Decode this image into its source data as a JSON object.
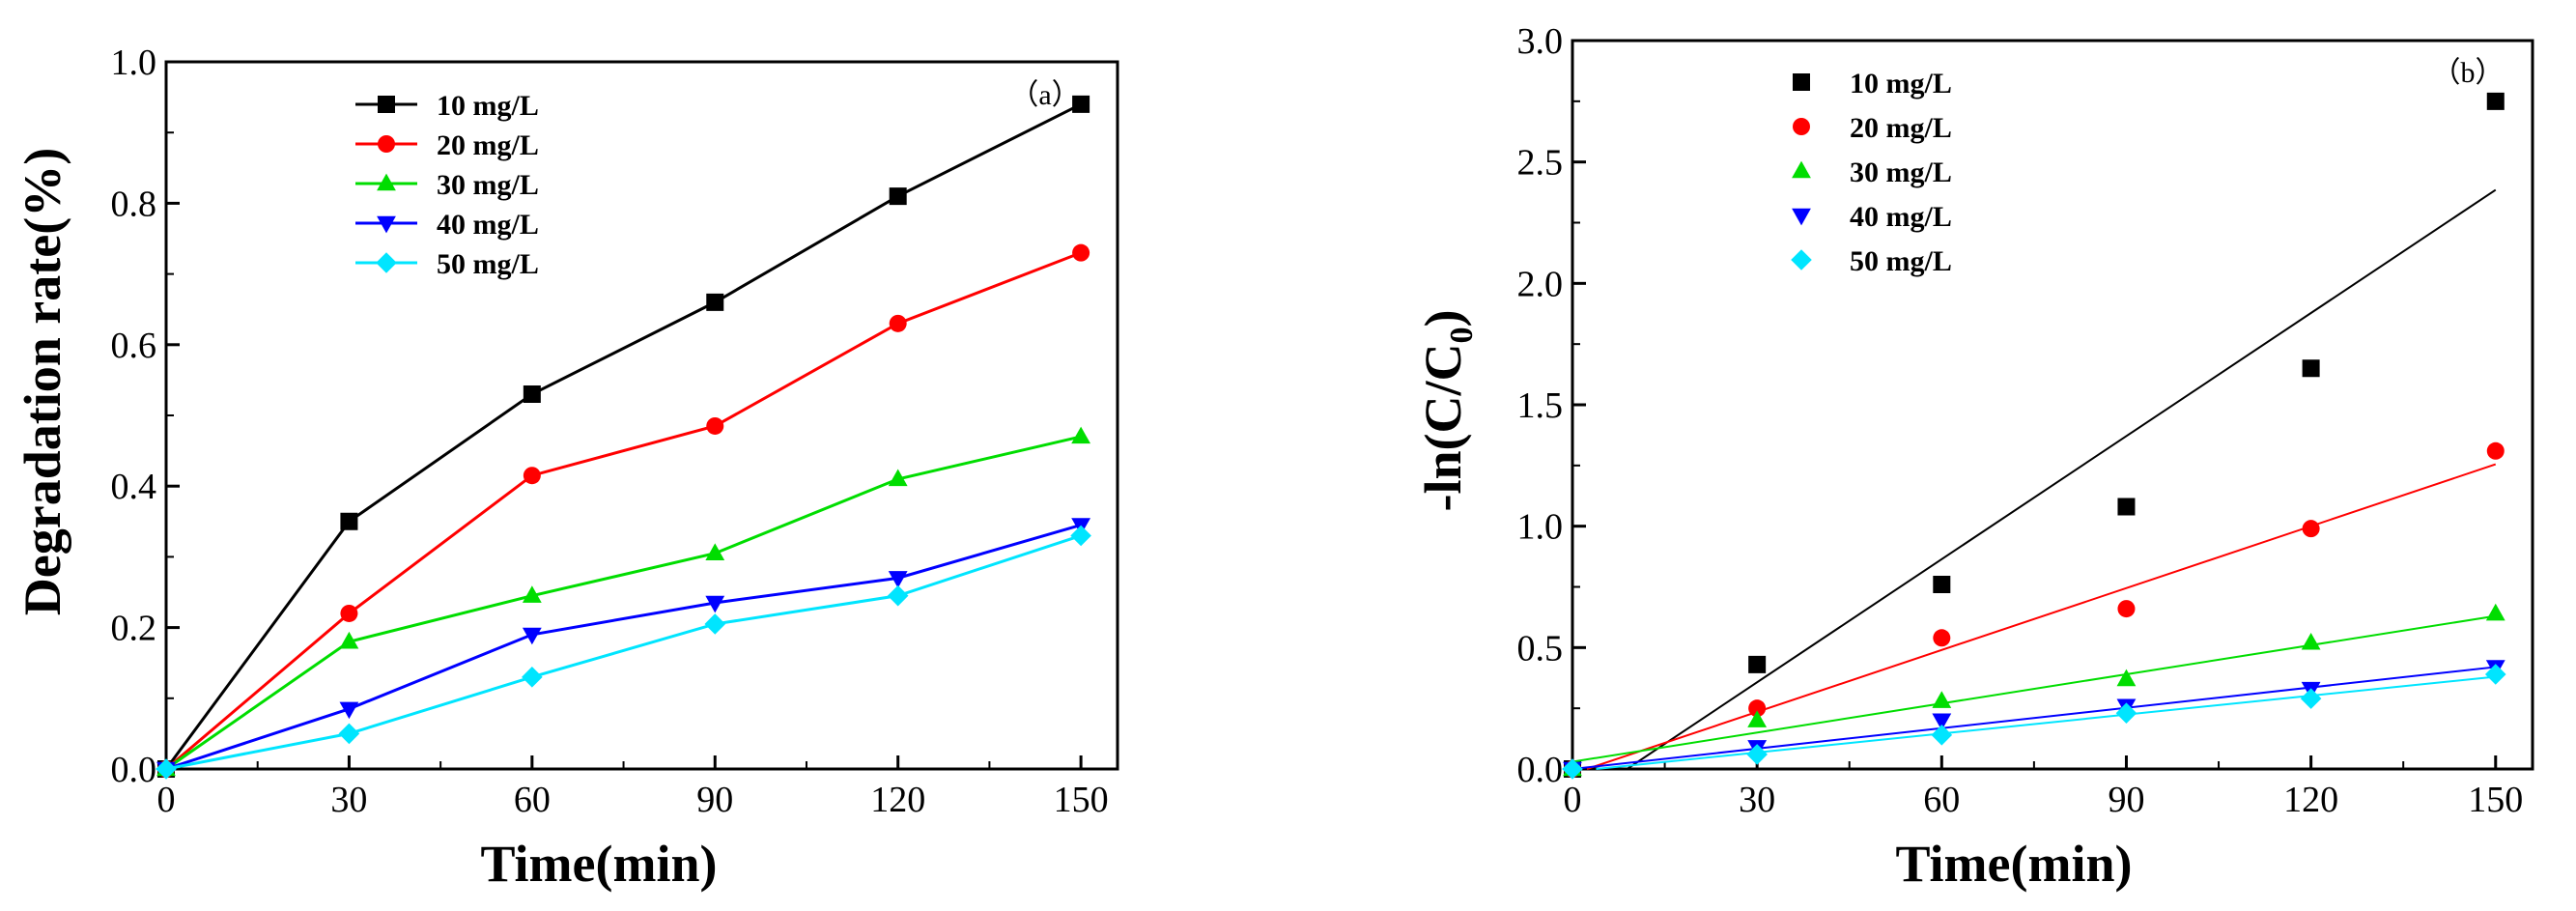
{
  "chart_data": [
    {
      "type": "line",
      "panel_label": "（a）",
      "xlabel": "Time(min)",
      "ylabel": "Degradation rate(%)",
      "xlim": [
        0,
        156
      ],
      "ylim": [
        0,
        1.0
      ],
      "x_ticks": [
        "0",
        "30",
        "60",
        "90",
        "120",
        "150"
      ],
      "y_ticks": [
        "0.0",
        "0.2",
        "0.4",
        "0.6",
        "0.8",
        "1.0"
      ],
      "x": [
        0,
        30,
        60,
        90,
        120,
        150
      ],
      "series": [
        {
          "name": "10 mg/L",
          "color": "#000000",
          "marker": "square",
          "values": [
            0.0,
            0.35,
            0.53,
            0.66,
            0.81,
            0.94
          ]
        },
        {
          "name": "20 mg/L",
          "color": "#ff0000",
          "marker": "circle",
          "values": [
            0.0,
            0.22,
            0.415,
            0.485,
            0.63,
            0.73
          ]
        },
        {
          "name": "30 mg/L",
          "color": "#00dd00",
          "marker": "triangle-up",
          "values": [
            0.0,
            0.18,
            0.245,
            0.305,
            0.41,
            0.47
          ]
        },
        {
          "name": "40 mg/L",
          "color": "#0000ff",
          "marker": "triangle-down",
          "values": [
            0.0,
            0.085,
            0.19,
            0.235,
            0.27,
            0.345
          ]
        },
        {
          "name": "50 mg/L",
          "color": "#00e5ff",
          "marker": "diamond",
          "values": [
            0.0,
            0.05,
            0.13,
            0.205,
            0.245,
            0.33
          ]
        }
      ],
      "legend": "top-left"
    },
    {
      "type": "scatter",
      "panel_label": "（b）",
      "xlabel": "Time(min)",
      "ylabel_main": "-ln(C/C",
      "ylabel_sub": "0",
      "ylabel_close": ")",
      "xlim": [
        0,
        156
      ],
      "ylim": [
        0,
        3.0
      ],
      "x_ticks": [
        "0",
        "30",
        "60",
        "90",
        "120",
        "150"
      ],
      "y_ticks": [
        "0.0",
        "0.5",
        "1.0",
        "1.5",
        "2.0",
        "2.5",
        "3.0"
      ],
      "x": [
        0,
        30,
        60,
        90,
        120,
        150
      ],
      "series": [
        {
          "name": "10 mg/L",
          "color": "#000000",
          "marker": "square",
          "values": [
            0.0,
            0.43,
            0.76,
            1.08,
            1.65,
            2.75
          ],
          "fit": {
            "slope": 0.0169,
            "intercept": -0.15
          }
        },
        {
          "name": "20 mg/L",
          "color": "#ff0000",
          "marker": "circle",
          "values": [
            0.0,
            0.25,
            0.54,
            0.66,
            0.99,
            1.31
          ],
          "fit": {
            "slope": 0.0085,
            "intercept": -0.02
          }
        },
        {
          "name": "30 mg/L",
          "color": "#00dd00",
          "marker": "triangle-up",
          "values": [
            0.0,
            0.2,
            0.28,
            0.37,
            0.52,
            0.64
          ],
          "fit": {
            "slope": 0.004,
            "intercept": 0.03
          }
        },
        {
          "name": "40 mg/L",
          "color": "#0000ff",
          "marker": "triangle-down",
          "values": [
            0.0,
            0.09,
            0.2,
            0.26,
            0.33,
            0.42
          ],
          "fit": {
            "slope": 0.0028,
            "intercept": 0.0
          }
        },
        {
          "name": "50 mg/L",
          "color": "#00e5ff",
          "marker": "diamond",
          "values": [
            0.0,
            0.06,
            0.14,
            0.23,
            0.29,
            0.39
          ],
          "fit": {
            "slope": 0.0026,
            "intercept": -0.01
          }
        }
      ],
      "legend": "top-left"
    }
  ]
}
